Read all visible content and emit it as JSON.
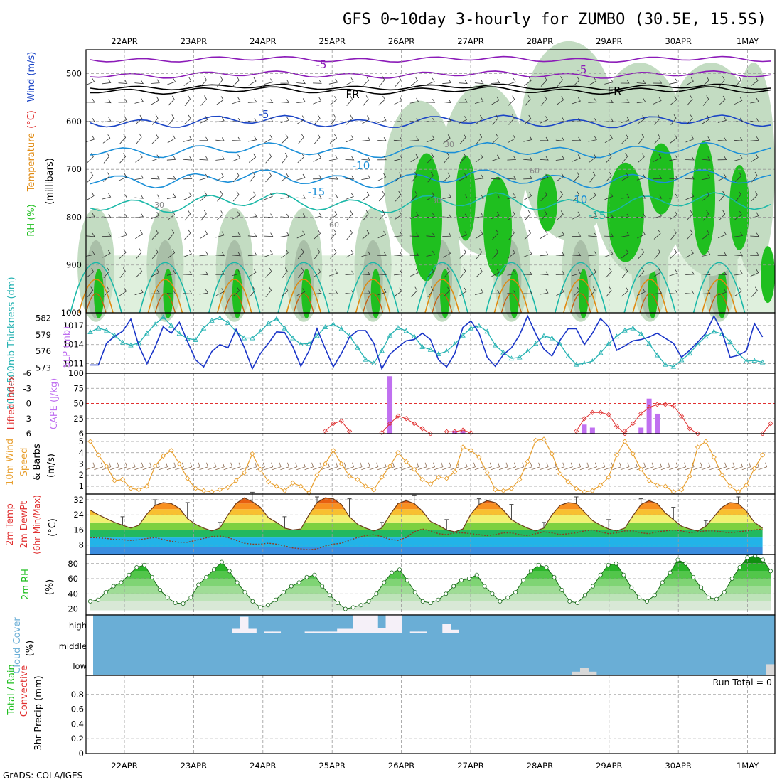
{
  "title": "GFS 0~10day 3-hourly for ZUMBO (30.5E, 15.5S)",
  "credit": "GrADS: COLA/IGES",
  "colors": {
    "rh_green": "#1fbf1f",
    "rh_light": "#dff0dd",
    "rh_mid": "#c3dcc2",
    "rh_dark": "#a9bfa8",
    "temp_purple": "#8b1ab8",
    "temp_black": "#000000",
    "temp_blue": "#1a44c6",
    "temp_cyan": "#1a8fd8",
    "temp_teal": "#1ab8a8",
    "temp_orange": "#e08a10",
    "slp_blue": "#1a35c8",
    "thickness_cyan": "#27b3b3",
    "lifted_red": "#e03030",
    "cape_violet": "#c070f0",
    "wind_orange": "#e8a030",
    "barb_brown": "#8b6a50",
    "cloud_blue": "#6aaed6",
    "cloud_white": "#f5f0f8"
  },
  "chart_data": [
    {
      "type": "contour",
      "panel": "upper-air",
      "ylabel_parts": [
        "RH (%)",
        "Temperature",
        "(°C)",
        "Wind (m/s)"
      ],
      "yunit": "(millibars)",
      "xticks_top": [
        "22APR",
        "23APR",
        "24APR",
        "25APR",
        "26APR",
        "27APR",
        "28APR",
        "29APR",
        "30APR",
        "1MAY"
      ],
      "xticks": [
        "22APR",
        "23APR",
        "24APR",
        "25APR",
        "26APR",
        "27APR",
        "28APR",
        "29APR",
        "30APR",
        "1MAY"
      ],
      "yticks": [
        "500",
        "600",
        "700",
        "800",
        "900",
        "1000"
      ],
      "ylim": [
        1000,
        450
      ],
      "contour_labels": [
        {
          "text": "-5",
          "color": "#8b1ab8"
        },
        {
          "text": "-5",
          "color": "#8b1ab8"
        },
        {
          "text": "FR",
          "color": "#000000"
        },
        {
          "text": "FR",
          "color": "#000000"
        },
        {
          "text": "-5",
          "color": "#1a44c6"
        },
        {
          "text": "-10",
          "color": "#1a8fd8"
        },
        {
          "text": "-10",
          "color": "#1a8fd8"
        },
        {
          "text": "-15",
          "color": "#1a8fd8"
        },
        {
          "text": "-15",
          "color": "#1ab8a8"
        },
        {
          "text": "30",
          "color": "#888888"
        },
        {
          "text": "30",
          "color": "#888888"
        },
        {
          "text": "30",
          "color": "#888888"
        },
        {
          "text": "60",
          "color": "#888888"
        },
        {
          "text": "60",
          "color": "#888888"
        }
      ]
    },
    {
      "type": "line",
      "panel": "slp-thickness",
      "ylabel_left": "1000-500mb Thickness (dm)",
      "ylabel_right": "SLP (mb)",
      "yticks_left": [
        "582",
        "579",
        "576",
        "573"
      ],
      "yticks_right": [
        "1017",
        "1014",
        "1011"
      ],
      "ylim_left": [
        572,
        583
      ],
      "ylim_right": [
        1009.5,
        1019
      ],
      "series": [
        {
          "name": "SLP",
          "axis": "right",
          "values": [
            1010.8,
            1010.8,
            1014.2,
            1015.3,
            1016.1,
            1018.0,
            1013.8,
            1011.0,
            1013.6,
            1016.8,
            1015.8,
            1017.5,
            1014.5,
            1011.6,
            1010.5,
            1012.9,
            1014.0,
            1013.5,
            1016.4,
            1013.6,
            1010.2,
            1012.6,
            1014.2,
            1016.0,
            1015.9,
            1013.7,
            1010.6,
            1013.0,
            1016.5,
            1013.4,
            1010.5,
            1012.6,
            1015.2,
            1016.2,
            1016.2,
            1014.2,
            1010.2,
            1012.5,
            1013.6,
            1014.6,
            1014.8,
            1015.8,
            1014.8,
            1011.6,
            1010.5,
            1012.6,
            1016.7,
            1017.7,
            1015.8,
            1012.0,
            1010.6,
            1012.4,
            1013.5,
            1015.5,
            1018.5,
            1015.7,
            1013.3,
            1012.2,
            1014.7,
            1016.5,
            1016.5,
            1014.0,
            1015.8,
            1018.1,
            1016.8,
            1013.1,
            1013.8,
            1014.6,
            1014.8,
            1015.2,
            1015.8,
            1015.0,
            1014.2,
            1012.0,
            1013.1,
            1014.4,
            1015.8,
            1018.5,
            1016.0,
            1012.0,
            1012.3,
            1013.0,
            1017.3,
            1015.2
          ]
        },
        {
          "name": "Thickness",
          "axis": "left",
          "values": [
            579.5,
            580.2,
            579.8,
            578.9,
            577.6,
            577.1,
            577.5,
            579.3,
            580.9,
            582.2,
            580.7,
            579.2,
            578.3,
            578.1,
            580.2,
            581.6,
            582.1,
            581.2,
            579.6,
            578.4,
            578.4,
            579.6,
            581.1,
            581.9,
            580.2,
            578.4,
            577.3,
            577.4,
            578.8,
            580.4,
            580.9,
            580.1,
            578.8,
            576.7,
            574.5,
            573.8,
            576.1,
            578.9,
            580.3,
            579.7,
            578.7,
            576.8,
            576.3,
            575.5,
            576.0,
            577.3,
            578.9,
            580.2,
            580.6,
            579.6,
            577.1,
            575.8,
            574.7,
            574.9,
            576.0,
            577.4,
            578.8,
            578.4,
            577.3,
            575.1,
            573.6,
            573.8,
            574.2,
            575.7,
            577.4,
            578.7,
            579.8,
            580.2,
            579.2,
            577.4,
            575.3,
            573.6,
            573.2,
            574.4,
            575.6,
            577.3,
            578.7,
            579.6,
            579.2,
            577.7,
            575.6,
            574.2,
            574.3,
            574.0
          ]
        }
      ]
    },
    {
      "type": "bar",
      "panel": "lifted-cape",
      "ylabel_left": "Lifted Index",
      "ylabel_right": "CAPE (J/kg)",
      "yticks_left": [
        "-6",
        "-3",
        "0",
        "3",
        "6"
      ],
      "yticks_right": [
        "100",
        "75",
        "50",
        "25",
        "6"
      ],
      "ylim_left": [
        6,
        -6
      ],
      "ylim_right": [
        0,
        100
      ],
      "series": [
        {
          "name": "CAPE",
          "values": [
            {
              "x": 37,
              "y": 95
            },
            {
              "x": 45,
              "y": 5
            },
            {
              "x": 46,
              "y": 5
            },
            {
              "x": 61,
              "y": 15
            },
            {
              "x": 62,
              "y": 10
            },
            {
              "x": 68,
              "y": 10
            },
            {
              "x": 69,
              "y": 58
            },
            {
              "x": 70,
              "y": 33
            }
          ]
        },
        {
          "name": "Lifted Index",
          "segments": [
            {
              "start": 29,
              "values": [
                5.5,
                4.0,
                3.5,
                5.5
              ]
            },
            {
              "start": 36,
              "values": [
                5.8,
                4.0,
                2.5,
                3.0,
                4.0,
                5.0,
                6.0
              ]
            },
            {
              "start": 44,
              "values": [
                5.6,
                5.6,
                5.3,
                5.8
              ]
            },
            {
              "start": 60,
              "values": [
                5.5,
                3.0,
                1.8,
                1.8,
                2.2,
                4.5,
                6.0
              ]
            },
            {
              "start": 66,
              "values": [
                5.5,
                4.0,
                2.0,
                0.8,
                0.2,
                0.2,
                0.5,
                2.5,
                5.0,
                6.0
              ]
            },
            {
              "start": 83,
              "values": [
                6.0,
                4.0
              ]
            }
          ]
        }
      ]
    },
    {
      "type": "line",
      "panel": "wind10m",
      "ylabel": "10m Wind Speed & Barbs (m/s)",
      "yticks": [
        "5",
        "4",
        "3",
        "2",
        "1"
      ],
      "ylim": [
        0.3,
        5.7
      ],
      "series": [
        {
          "name": "Wind speed",
          "values": [
            5.0,
            3.8,
            2.8,
            1.5,
            1.6,
            0.8,
            0.7,
            1.0,
            2.8,
            3.7,
            4.2,
            3.0,
            1.7,
            0.8,
            0.6,
            0.5,
            0.7,
            0.9,
            1.5,
            2.2,
            3.9,
            2.5,
            1.4,
            1.0,
            0.6,
            1.3,
            1.0,
            0.4,
            2.0,
            3.0,
            4.2,
            3.0,
            1.9,
            1.6,
            1.0,
            0.7,
            1.8,
            2.8,
            4.0,
            3.2,
            2.5,
            1.6,
            1.2,
            1.8,
            1.7,
            2.3,
            4.5,
            4.2,
            3.6,
            2.2,
            0.7,
            0.6,
            0.8,
            1.6,
            3.2,
            5.1,
            5.2,
            3.9,
            2.1,
            1.4,
            0.8,
            0.5,
            0.6,
            1.1,
            1.8,
            3.8,
            5.0,
            3.9,
            2.5,
            1.5,
            1.1,
            1.0,
            0.5,
            0.7,
            1.9,
            4.5,
            5.0,
            3.6,
            2.0,
            1.0,
            0.5,
            1.1,
            2.6,
            3.8
          ]
        }
      ]
    },
    {
      "type": "area",
      "panel": "temp2m",
      "ylabel": "2m Temp 2m DewPt (6hr Min/Max) (°C)",
      "yticks": [
        "32",
        "24",
        "16",
        "8"
      ],
      "ylim": [
        3,
        35
      ],
      "series": [
        {
          "name": "2m Temp",
          "values": [
            26.5,
            24.0,
            22.0,
            20.0,
            18.5,
            17.0,
            18.5,
            24.5,
            29.0,
            30.5,
            30.0,
            27.5,
            22.0,
            19.0,
            17.0,
            15.5,
            17.0,
            24.0,
            30.0,
            33.0,
            31.0,
            28.0,
            22.5,
            20.0,
            17.0,
            16.0,
            16.5,
            24.0,
            30.5,
            33.0,
            32.5,
            29.5,
            23.0,
            19.0,
            17.0,
            15.5,
            17.0,
            24.0,
            30.0,
            31.5,
            30.0,
            26.0,
            20.5,
            18.5,
            16.0,
            15.0,
            16.5,
            24.5,
            29.5,
            31.5,
            30.5,
            26.5,
            21.5,
            19.0,
            17.0,
            15.5,
            17.0,
            24.0,
            29.0,
            30.5,
            30.0,
            25.5,
            21.0,
            18.5,
            16.5,
            15.5,
            17.0,
            23.5,
            29.5,
            31.5,
            30.0,
            25.0,
            21.5,
            18.0,
            16.5,
            15.5,
            18.0,
            23.0,
            28.0,
            30.5,
            30.0,
            26.0,
            20.0,
            17.0
          ]
        },
        {
          "name": "2m DewPt",
          "values": [
            12.0,
            11.8,
            11.5,
            11.0,
            10.8,
            10.5,
            10.8,
            11.5,
            12.0,
            11.0,
            10.0,
            9.5,
            9.5,
            10.5,
            11.5,
            12.5,
            12.8,
            12.0,
            10.5,
            9.0,
            8.5,
            8.5,
            9.0,
            8.5,
            7.5,
            6.5,
            6.0,
            5.5,
            6.0,
            7.5,
            8.5,
            9.0,
            10.5,
            12.0,
            13.0,
            13.5,
            12.5,
            11.0,
            10.5,
            12.0,
            15.0,
            16.5,
            15.5,
            14.0,
            13.5,
            14.5,
            14.5,
            14.0,
            13.5,
            13.0,
            13.5,
            14.5,
            14.5,
            13.5,
            13.0,
            14.0,
            15.0,
            14.5,
            13.5,
            14.0,
            14.5,
            15.5,
            16.0,
            15.0,
            14.0,
            14.5,
            15.5,
            15.5,
            14.5,
            14.0,
            15.0,
            15.5,
            16.0,
            15.5,
            14.5,
            15.0,
            15.5,
            15.5,
            15.0,
            14.5,
            15.0,
            15.5,
            16.0,
            16.5
          ]
        }
      ]
    },
    {
      "type": "area",
      "panel": "rh2m",
      "ylabel": "2m RH (%)",
      "yticks": [
        "80",
        "60",
        "40",
        "20"
      ],
      "ylim": [
        12,
        92
      ],
      "series": [
        {
          "name": "2m RH",
          "values": [
            30,
            32,
            42,
            50,
            55,
            65,
            75,
            78,
            62,
            45,
            35,
            28,
            27,
            35,
            52,
            62,
            72,
            82,
            70,
            55,
            42,
            30,
            22,
            25,
            32,
            42,
            50,
            55,
            62,
            65,
            50,
            38,
            28,
            20,
            22,
            25,
            30,
            40,
            55,
            68,
            72,
            58,
            42,
            30,
            28,
            32,
            40,
            50,
            58,
            60,
            65,
            50,
            40,
            30,
            35,
            42,
            58,
            70,
            78,
            75,
            62,
            45,
            30,
            28,
            38,
            50,
            65,
            78,
            80,
            65,
            48,
            35,
            30,
            38,
            55,
            68,
            85,
            80,
            62,
            48,
            35,
            33,
            42,
            60,
            75,
            88,
            90,
            85,
            70
          ]
        }
      ]
    },
    {
      "type": "bar",
      "panel": "cloud",
      "ylabel": "Cloud Cover (%)",
      "yticks": [
        "high",
        "middle",
        "low"
      ],
      "series": [
        {
          "name": "High cloud",
          "values": [
            {
              "x": 18,
              "y": 25
            },
            {
              "x": 19,
              "y": 90
            },
            {
              "x": 20,
              "y": 25
            },
            {
              "x": 22,
              "y": 10
            },
            {
              "x": 23,
              "y": 10
            },
            {
              "x": 27,
              "y": 10
            },
            {
              "x": 28,
              "y": 10
            },
            {
              "x": 29,
              "y": 10
            },
            {
              "x": 30,
              "y": 10
            },
            {
              "x": 31,
              "y": 25
            },
            {
              "x": 32,
              "y": 25
            },
            {
              "x": 33,
              "y": 100
            },
            {
              "x": 34,
              "y": 100
            },
            {
              "x": 35,
              "y": 100
            },
            {
              "x": 36,
              "y": 30
            },
            {
              "x": 37,
              "y": 100
            },
            {
              "x": 38,
              "y": 100
            },
            {
              "x": 40,
              "y": 10
            },
            {
              "x": 41,
              "y": 10
            },
            {
              "x": 44,
              "y": 50
            },
            {
              "x": 45,
              "y": 20
            }
          ]
        },
        {
          "name": "Low cloud",
          "values": [
            {
              "x": 60,
              "y": 20
            },
            {
              "x": 61,
              "y": 40
            },
            {
              "x": 62,
              "y": 20
            },
            {
              "x": 84,
              "y": 60
            }
          ]
        }
      ]
    },
    {
      "type": "bar",
      "panel": "precip",
      "ylabel_parts": [
        "Total / Rain",
        "Convective",
        "3hr Precip (mm)"
      ],
      "yticks": [
        "0.8",
        "0.6",
        "0.4",
        "0.2",
        "0"
      ],
      "ylim": [
        0,
        1
      ],
      "run_total": "Run Total = 0",
      "xticks": [
        "22APR",
        "23APR",
        "24APR",
        "25APR",
        "26APR",
        "27APR",
        "28APR",
        "29APR",
        "30APR",
        "1MAY"
      ],
      "series": [
        {
          "name": "Total / Rain",
          "values": []
        },
        {
          "name": "Convective",
          "values": []
        }
      ]
    }
  ]
}
